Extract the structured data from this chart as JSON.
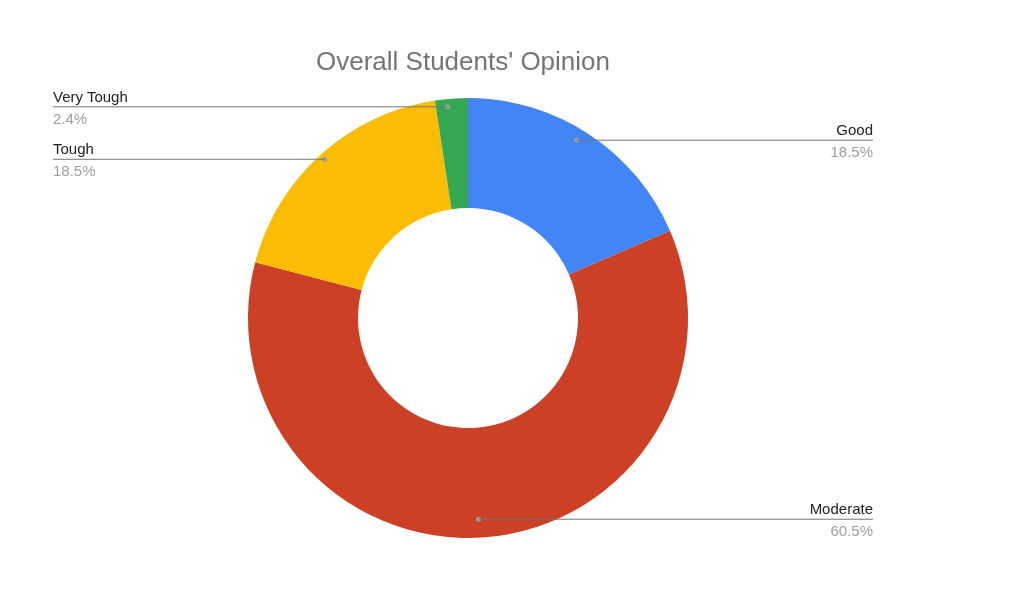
{
  "chart_data": {
    "type": "donut",
    "title": "Overall Students' Opinion",
    "categories": [
      "Good",
      "Moderate",
      "Tough",
      "Very Tough"
    ],
    "values": [
      18.5,
      60.5,
      18.5,
      2.4
    ],
    "value_labels": [
      "18.5%",
      "60.5%",
      "18.5%",
      "2.4%"
    ],
    "colors": [
      "#4285f4",
      "#cc4125",
      "#fbbc04",
      "#34a853"
    ]
  }
}
